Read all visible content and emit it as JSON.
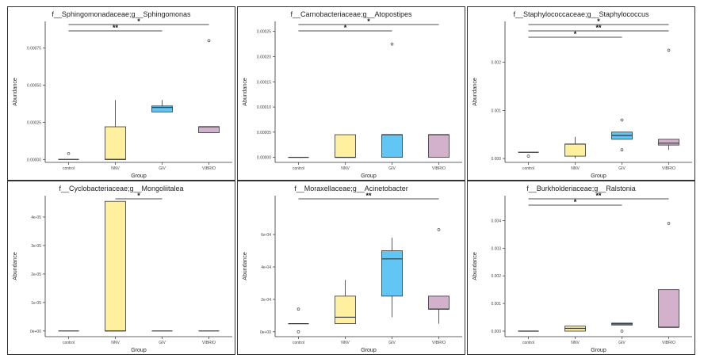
{
  "figure": {
    "colors": {
      "control": "#ffffff",
      "NNV": "#fff0a0",
      "GIV": "#62c6f5",
      "VIBRIO": "#d3b1cd"
    },
    "whisker_color": "#333333",
    "outlier_symbol": "open-circle"
  },
  "chart_data": [
    {
      "type": "boxplot",
      "title": "f__Sphingomonadaceae;g__Sphingomonas",
      "xlabel": "Group",
      "ylabel": "Abundance",
      "categories": [
        "control",
        "NNV",
        "GIV",
        "VIBRIO"
      ],
      "ylim": [
        -2e-05,
        0.00093
      ],
      "yticks": [
        0,
        0.00025,
        0.0005,
        0.00075
      ],
      "ytick_labels": [
        "0.00000",
        "0.00025",
        "0.00050",
        "0.00075"
      ],
      "boxes": [
        {
          "group": "control",
          "lower_whisker": 0,
          "q1": 0,
          "median": 0,
          "q3": 0,
          "upper_whisker": 0,
          "outliers": [
            4e-05
          ]
        },
        {
          "group": "NNV",
          "lower_whisker": 0,
          "q1": 0,
          "median": 0,
          "q3": 0.00022,
          "upper_whisker": 0.0004,
          "outliers": []
        },
        {
          "group": "GIV",
          "lower_whisker": 0.00032,
          "q1": 0.00032,
          "median": 0.00035,
          "q3": 0.00036,
          "upper_whisker": 0.0004,
          "outliers": []
        },
        {
          "group": "VIBRIO",
          "lower_whisker": 0.00018,
          "q1": 0.00018,
          "median": 0.00022,
          "q3": 0.00022,
          "upper_whisker": 0.00022,
          "outliers": [
            0.0008
          ]
        }
      ],
      "significance": [
        {
          "from": "control",
          "to": "VIBRIO",
          "label": "*"
        },
        {
          "from": "control",
          "to": "GIV",
          "label": "**"
        }
      ]
    },
    {
      "type": "boxplot",
      "title": "f__Carnobacteriaceae;g__Atopostipes",
      "xlabel": "Group",
      "ylabel": "Abundance",
      "categories": [
        "control",
        "NNV",
        "GIV",
        "VIBRIO"
      ],
      "ylim": [
        -1e-05,
        0.00027
      ],
      "yticks": [
        0,
        5e-05,
        0.0001,
        0.00015,
        0.0002,
        0.00025
      ],
      "ytick_labels": [
        "0.00000",
        "0.00005",
        "0.00010",
        "0.00015",
        "0.00020",
        "0.00025"
      ],
      "boxes": [
        {
          "group": "control",
          "lower_whisker": 0,
          "q1": 0,
          "median": 0,
          "q3": 0,
          "upper_whisker": 0,
          "outliers": []
        },
        {
          "group": "NNV",
          "lower_whisker": 0,
          "q1": 0,
          "median": 0,
          "q3": 4.5e-05,
          "upper_whisker": 4.5e-05,
          "outliers": []
        },
        {
          "group": "GIV",
          "lower_whisker": 0,
          "q1": 0,
          "median": 4.5e-05,
          "q3": 4.5e-05,
          "upper_whisker": 4.5e-05,
          "outliers": [
            0.000225
          ]
        },
        {
          "group": "VIBRIO",
          "lower_whisker": 0,
          "q1": 0,
          "median": 4.5e-05,
          "q3": 4.5e-05,
          "upper_whisker": 4.5e-05,
          "outliers": []
        }
      ],
      "significance": [
        {
          "from": "control",
          "to": "VIBRIO",
          "label": "*"
        },
        {
          "from": "control",
          "to": "GIV",
          "label": "*"
        }
      ]
    },
    {
      "type": "boxplot",
      "title": "f__Staphylococcaceae;g__Staphylococcus",
      "xlabel": "Group",
      "ylabel": "Abundance",
      "categories": [
        "control",
        "NNV",
        "GIV",
        "VIBRIO"
      ],
      "ylim": [
        -8e-05,
        0.00285
      ],
      "yticks": [
        0,
        0.001,
        0.002
      ],
      "ytick_labels": [
        "0.000",
        "0.001",
        "0.002"
      ],
      "boxes": [
        {
          "group": "control",
          "lower_whisker": 0.00013,
          "q1": 0.00013,
          "median": 0.00013,
          "q3": 0.00013,
          "upper_whisker": 0.00013,
          "outliers": [
            5e-05
          ]
        },
        {
          "group": "NNV",
          "lower_whisker": 0,
          "q1": 5e-05,
          "median": 0.0003,
          "q3": 0.0003,
          "upper_whisker": 0.00045,
          "outliers": []
        },
        {
          "group": "GIV",
          "lower_whisker": 0.0004,
          "q1": 0.0004,
          "median": 0.00048,
          "q3": 0.00055,
          "upper_whisker": 0.00055,
          "outliers": [
            0.0008,
            0.00018
          ]
        },
        {
          "group": "VIBRIO",
          "lower_whisker": 0.00018,
          "q1": 0.00028,
          "median": 0.00032,
          "q3": 0.0004,
          "upper_whisker": 0.0004,
          "outliers": [
            0.00225
          ]
        }
      ],
      "significance": [
        {
          "from": "control",
          "to": "VIBRIO",
          "label": "*"
        },
        {
          "from": "control",
          "to": "VIBRIO",
          "label": "**"
        },
        {
          "from": "control",
          "to": "GIV",
          "label": "*"
        }
      ]
    },
    {
      "type": "boxplot",
      "title": "f__Cyclobacteriaceae;g__Mongoliitalea",
      "xlabel": "Group",
      "ylabel": "Abundance",
      "categories": [
        "control",
        "NNV",
        "GIV",
        "VIBRIO"
      ],
      "ylim": [
        -2e-06,
        4.75e-05
      ],
      "yticks": [
        0,
        1e-05,
        2e-05,
        3e-05,
        4e-05
      ],
      "ytick_labels": [
        "0e+00",
        "1e-05",
        "2e-05",
        "3e-05",
        "4e-05"
      ],
      "boxes": [
        {
          "group": "control",
          "lower_whisker": 0,
          "q1": 0,
          "median": 0,
          "q3": 0,
          "upper_whisker": 0,
          "outliers": []
        },
        {
          "group": "NNV",
          "lower_whisker": 0,
          "q1": 0,
          "median": 0,
          "q3": 4.55e-05,
          "upper_whisker": 4.55e-05,
          "outliers": []
        },
        {
          "group": "GIV",
          "lower_whisker": 0,
          "q1": 0,
          "median": 0,
          "q3": 0,
          "upper_whisker": 0,
          "outliers": []
        },
        {
          "group": "VIBRIO",
          "lower_whisker": 0,
          "q1": 0,
          "median": 0,
          "q3": 0,
          "upper_whisker": 0,
          "outliers": []
        }
      ],
      "significance": [
        {
          "from": "NNV",
          "to": "GIV",
          "label": "*"
        }
      ]
    },
    {
      "type": "boxplot",
      "title": "f__Moraxellaceae;g__Acinetobacter",
      "xlabel": "Group",
      "ylabel": "Abundance",
      "categories": [
        "control",
        "NNV",
        "GIV",
        "VIBRIO"
      ],
      "ylim": [
        -3e-05,
        0.00084
      ],
      "yticks": [
        0,
        0.0002,
        0.0004,
        0.0006
      ],
      "ytick_labels": [
        "0e+00",
        "2e-04",
        "4e-04",
        "6e-04"
      ],
      "boxes": [
        {
          "group": "control",
          "lower_whisker": 5e-05,
          "q1": 5e-05,
          "median": 5e-05,
          "q3": 5e-05,
          "upper_whisker": 5e-05,
          "outliers": [
            0.00014,
            0
          ]
        },
        {
          "group": "NNV",
          "lower_whisker": 5e-05,
          "q1": 5e-05,
          "median": 9e-05,
          "q3": 0.00022,
          "upper_whisker": 0.00032,
          "outliers": []
        },
        {
          "group": "GIV",
          "lower_whisker": 9e-05,
          "q1": 0.00022,
          "median": 0.00045,
          "q3": 0.0005,
          "upper_whisker": 0.00058,
          "outliers": []
        },
        {
          "group": "VIBRIO",
          "lower_whisker": 5e-05,
          "q1": 0.00014,
          "median": 0.00014,
          "q3": 0.00022,
          "upper_whisker": 0.00022,
          "outliers": [
            0.00063
          ]
        }
      ],
      "significance": [
        {
          "from": "control",
          "to": "VIBRIO",
          "label": "**"
        }
      ]
    },
    {
      "type": "boxplot",
      "title": "f__Burkholderiaceae;g__Ralstonia",
      "xlabel": "Group",
      "ylabel": "Abundance",
      "categories": [
        "control",
        "NNV",
        "GIV",
        "VIBRIO"
      ],
      "ylim": [
        -0.0002,
        0.0049
      ],
      "yticks": [
        0,
        0.001,
        0.002,
        0.003,
        0.004
      ],
      "ytick_labels": [
        "0.000",
        "0.001",
        "0.002",
        "0.003",
        "0.004"
      ],
      "boxes": [
        {
          "group": "control",
          "lower_whisker": 0,
          "q1": 0,
          "median": 0,
          "q3": 0,
          "upper_whisker": 0,
          "outliers": []
        },
        {
          "group": "NNV",
          "lower_whisker": 0,
          "q1": 0,
          "median": 0.0001,
          "q3": 0.00018,
          "upper_whisker": 0.00018,
          "outliers": []
        },
        {
          "group": "GIV",
          "lower_whisker": 0.00022,
          "q1": 0.00022,
          "median": 0.00026,
          "q3": 0.00029,
          "upper_whisker": 0.00029,
          "outliers": [
            0
          ]
        },
        {
          "group": "VIBRIO",
          "lower_whisker": 0.00014,
          "q1": 0.00014,
          "median": 0.00014,
          "q3": 0.0015,
          "upper_whisker": 0.0015,
          "outliers": [
            0.0039
          ]
        }
      ],
      "significance": [
        {
          "from": "control",
          "to": "VIBRIO",
          "label": "**"
        },
        {
          "from": "control",
          "to": "GIV",
          "label": "*"
        }
      ]
    }
  ]
}
